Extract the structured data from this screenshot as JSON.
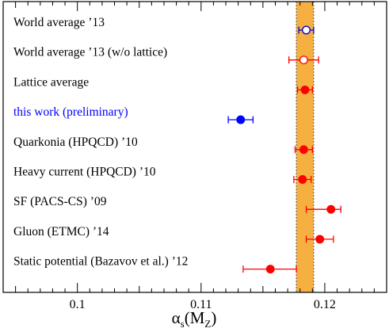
{
  "chart_data": {
    "type": "scatter",
    "xlabel": "α",
    "xlabel_sub1": "s",
    "xlabel_paren_open": "(M",
    "xlabel_sub2": "Z",
    "xlabel_paren_close": ")",
    "xlim": [
      0.094,
      0.125
    ],
    "xticks": [
      {
        "value": 0.1,
        "label": "0.1"
      },
      {
        "value": 0.11,
        "label": "0.11"
      },
      {
        "value": 0.12,
        "label": "0.12"
      }
    ],
    "minor_tick_step": 0.001,
    "grid": false,
    "band": {
      "min": 0.1177,
      "max": 0.1191,
      "color": "#f5b041"
    },
    "entries": [
      {
        "label": "World average ’13",
        "value": 0.1185,
        "err_low": 0.0006,
        "err_high": 0.0006,
        "marker": "open",
        "color": "#0000cc",
        "label_color": "#000000"
      },
      {
        "label": "World average ’13 (w/o lattice)",
        "value": 0.1183,
        "err_low": 0.0012,
        "err_high": 0.0012,
        "marker": "open",
        "color": "#ff0000",
        "label_color": "#000000"
      },
      {
        "label": "Lattice average",
        "value": 0.1184,
        "err_low": 0.0006,
        "err_high": 0.0006,
        "marker": "filled",
        "color": "#ff0000",
        "label_color": "#000000"
      },
      {
        "label": "this work (preliminary)",
        "value": 0.1132,
        "err_low": 0.001,
        "err_high": 0.001,
        "marker": "filled",
        "color": "#0000ff",
        "label_color": "#0000ff"
      },
      {
        "label": "Quarkonia (HPQCD) ’10",
        "value": 0.1183,
        "err_low": 0.0007,
        "err_high": 0.0007,
        "marker": "filled",
        "color": "#ff0000",
        "label_color": "#000000"
      },
      {
        "label": "Heavy current (HPQCD) ’10",
        "value": 0.1182,
        "err_low": 0.0007,
        "err_high": 0.0007,
        "marker": "filled",
        "color": "#ff0000",
        "label_color": "#000000"
      },
      {
        "label": "SF (PACS-CS) ’09",
        "value": 0.1205,
        "err_low": 0.002,
        "err_high": 0.0008,
        "marker": "filled",
        "color": "#ff0000",
        "label_color": "#000000"
      },
      {
        "label": "Gluon (ETMC) ’14",
        "value": 0.1196,
        "err_low": 0.0011,
        "err_high": 0.0011,
        "marker": "filled",
        "color": "#ff0000",
        "label_color": "#000000"
      },
      {
        "label": "Static potential (Bazavov et al.) ’12",
        "value": 0.1156,
        "err_low": 0.0022,
        "err_high": 0.0021,
        "marker": "filled",
        "color": "#ff0000",
        "label_color": "#000000"
      }
    ]
  }
}
